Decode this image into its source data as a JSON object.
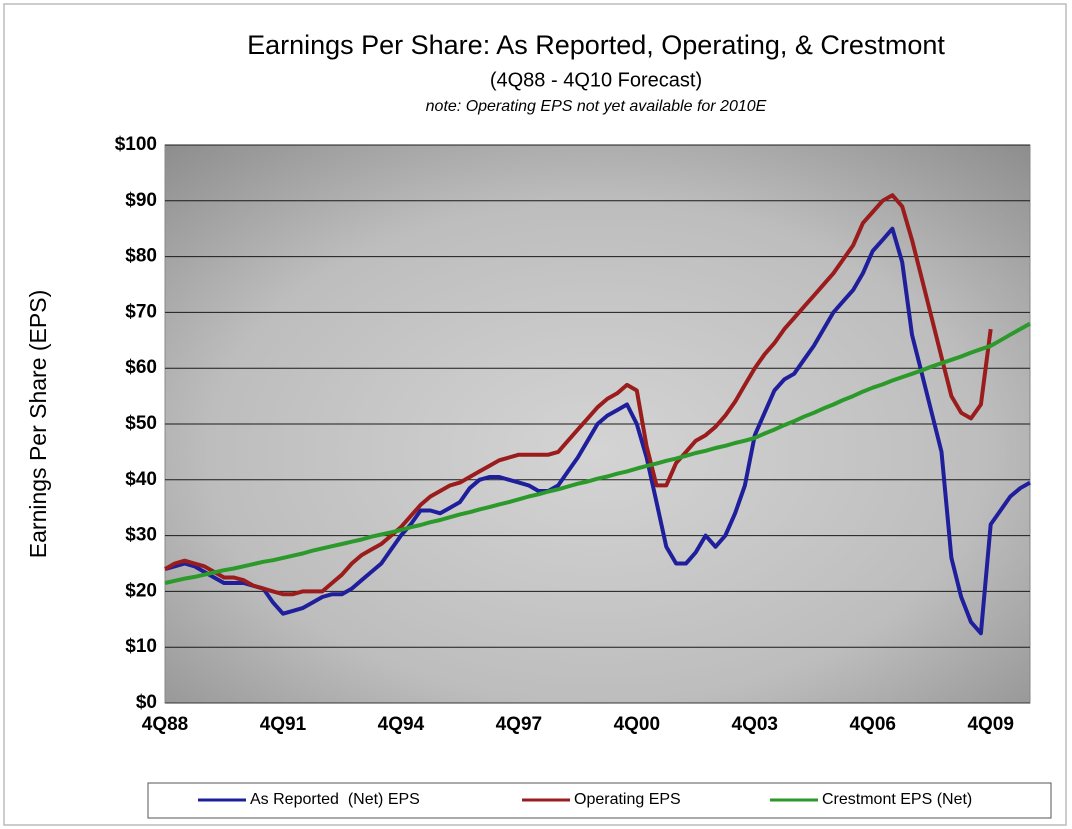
{
  "chart_data": {
    "type": "line",
    "title": "Earnings Per Share: As Reported, Operating, & Crestmont",
    "subtitle": "(4Q88 - 4Q10 Forecast)",
    "note": "note: Operating EPS not yet available for 2010E",
    "y_label": "Earnings Per Share (EPS)",
    "categories": [
      "4Q88",
      null,
      null,
      null,
      null,
      null,
      null,
      null,
      null,
      null,
      null,
      null,
      "4Q91",
      null,
      null,
      null,
      null,
      null,
      null,
      null,
      null,
      null,
      null,
      null,
      "4Q94",
      null,
      null,
      null,
      null,
      null,
      null,
      null,
      null,
      null,
      null,
      null,
      "4Q97",
      null,
      null,
      null,
      null,
      null,
      null,
      null,
      null,
      null,
      null,
      null,
      "4Q00",
      null,
      null,
      null,
      null,
      null,
      null,
      null,
      null,
      null,
      null,
      null,
      "4Q03",
      null,
      null,
      null,
      null,
      null,
      null,
      null,
      null,
      null,
      null,
      null,
      "4Q06",
      null,
      null,
      null,
      null,
      null,
      null,
      null,
      null,
      null,
      null,
      null,
      "4Q09",
      null,
      null,
      null,
      null
    ],
    "series": [
      {
        "name": "As Reported  (Net) EPS",
        "color": "#1f1f9c",
        "values": [
          24,
          24.5,
          25,
          24.5,
          23.5,
          22.5,
          21.5,
          21.5,
          21.5,
          21,
          20.5,
          18,
          16,
          16.5,
          17,
          18,
          19,
          19.5,
          19.5,
          20.5,
          22,
          23.5,
          25,
          27.5,
          30,
          32,
          34.5,
          34.5,
          34,
          35,
          36,
          38.5,
          40,
          40.5,
          40.5,
          40,
          39.5,
          39,
          38,
          38,
          39,
          41.5,
          44,
          47,
          50,
          51.5,
          52.5,
          53.5,
          50,
          44,
          36,
          28,
          25,
          25,
          27,
          30,
          28,
          30,
          34,
          39,
          48,
          52,
          56,
          58,
          59,
          61.5,
          64,
          67,
          70,
          72,
          74,
          77,
          81,
          83,
          85,
          79,
          66,
          59,
          52,
          45,
          26,
          19,
          14.5,
          12.5,
          32,
          34.5,
          37,
          38.5,
          39.5
        ]
      },
      {
        "name": "Operating EPS",
        "color": "#9a1c1c",
        "values": [
          24,
          25,
          25.5,
          25,
          24.5,
          23.5,
          22.5,
          22.5,
          22,
          21,
          20.5,
          20,
          19.5,
          19.5,
          20,
          20,
          20,
          21.5,
          23,
          25,
          26.5,
          27.5,
          28.5,
          30,
          31.5,
          33.5,
          35.5,
          37,
          38,
          39,
          39.5,
          40.5,
          41.5,
          42.5,
          43.5,
          44,
          44.5,
          44.5,
          44.5,
          44.5,
          45,
          47,
          49,
          51,
          53,
          54.5,
          55.5,
          57,
          56,
          46,
          39,
          39,
          43,
          45,
          47,
          48,
          49.5,
          51.5,
          54,
          57,
          60,
          62.5,
          64.5,
          67,
          69,
          71,
          73,
          75,
          77,
          79.5,
          82,
          86,
          88,
          90,
          91,
          89,
          83,
          76,
          69,
          62,
          55,
          52,
          51,
          53.5,
          67,
          null,
          null,
          null,
          null
        ]
      },
      {
        "name": "Crestmont EPS (Net)",
        "color": "#2b9a2b",
        "values": [
          21.5,
          21.9,
          22.3,
          22.6,
          23,
          23.4,
          23.8,
          24.1,
          24.5,
          24.9,
          25.3,
          25.6,
          26,
          26.4,
          26.8,
          27.3,
          27.7,
          28.1,
          28.5,
          28.9,
          29.3,
          29.8,
          30.2,
          30.6,
          31,
          31.5,
          31.9,
          32.4,
          32.8,
          33.3,
          33.8,
          34.2,
          34.7,
          35.1,
          35.6,
          36,
          36.5,
          37,
          37.4,
          37.9,
          38.3,
          38.8,
          39.3,
          39.7,
          40.2,
          40.6,
          41.1,
          41.5,
          42,
          42.5,
          42.9,
          43.4,
          43.8,
          44.3,
          44.8,
          45.2,
          45.7,
          46.1,
          46.6,
          47,
          47.5,
          48.3,
          49,
          49.8,
          50.5,
          51.3,
          52,
          52.8,
          53.5,
          54.3,
          55,
          55.8,
          56.5,
          57.1,
          57.8,
          58.4,
          59,
          59.6,
          60.3,
          60.9,
          61.5,
          62.1,
          62.8,
          63.4,
          64,
          65,
          66,
          67,
          68
        ]
      }
    ],
    "ylim": [
      0,
      100
    ],
    "yticks": [
      {
        "value": 0,
        "label": "$0"
      },
      {
        "value": 10,
        "label": "$10"
      },
      {
        "value": 20,
        "label": "$20"
      },
      {
        "value": 30,
        "label": "$30"
      },
      {
        "value": 40,
        "label": "$40"
      },
      {
        "value": 50,
        "label": "$50"
      },
      {
        "value": 60,
        "label": "$60"
      },
      {
        "value": 70,
        "label": "$70"
      },
      {
        "value": 80,
        "label": "$80"
      },
      {
        "value": 90,
        "label": "$90"
      },
      {
        "value": 100,
        "label": "$100"
      }
    ],
    "grid": true,
    "legend": "bottom"
  }
}
